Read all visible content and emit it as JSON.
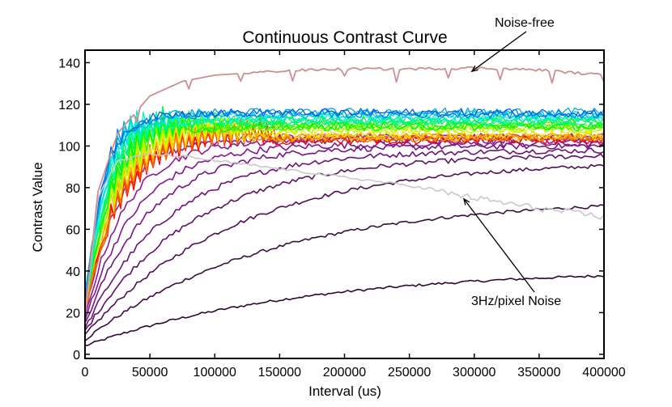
{
  "chart_data": {
    "type": "line",
    "title": "Continuous Contrast Curve",
    "xlabel": "Interval (us)",
    "ylabel": "Contrast Value",
    "xlim": [
      0,
      400000
    ],
    "ylim": [
      -2,
      146
    ],
    "x_ticks": [
      0,
      50000,
      100000,
      150000,
      200000,
      250000,
      300000,
      350000,
      400000
    ],
    "y_ticks": [
      0,
      20,
      40,
      60,
      80,
      100,
      120,
      140
    ],
    "grid": false,
    "legend": "none",
    "annotations": [
      {
        "text": "Noise-free",
        "arrow_to": [
          300000,
          137
        ]
      },
      {
        "text": "3Hz/pixel Noise",
        "arrow_to": [
          292000,
          75
        ]
      }
    ],
    "noise_free_series": {
      "color": "#cc8f8f",
      "x": [
        0,
        10000,
        25000,
        50000,
        75000,
        100000,
        150000,
        200000,
        250000,
        300000,
        350000,
        400000
      ],
      "y": [
        20,
        78,
        106,
        124,
        131,
        134,
        136,
        137,
        137,
        137.5,
        136.5,
        134
      ]
    },
    "noise_3hz_series": {
      "color": "#c8c8c8",
      "x": [
        0,
        10000,
        25000,
        50000,
        75000,
        100000,
        150000,
        200000,
        250000,
        300000,
        350000,
        400000
      ],
      "y": [
        18,
        75,
        93,
        96,
        95,
        93,
        89,
        85,
        81,
        75,
        70,
        66
      ]
    },
    "purple_series": {
      "colors": [
        "#2a0a2a",
        "#3a0d40",
        "#4d0f55",
        "#5e1068",
        "#6c1278",
        "#781486",
        "#841690",
        "#8e1a96",
        "#96209a"
      ],
      "finals": [
        41,
        75,
        93,
        96,
        98,
        100,
        101,
        103,
        104
      ],
      "starts": [
        4,
        7,
        9,
        11,
        12,
        14,
        16,
        17,
        19
      ],
      "rates": [
        165000,
        140000,
        115000,
        85000,
        65000,
        50000,
        40000,
        32000,
        26000
      ]
    },
    "colored_series": {
      "count": 24,
      "hue_range": [
        0,
        215
      ],
      "final_min": 102,
      "final_max": 117,
      "start_min": 20,
      "start_max": 28,
      "rate_min": 14000,
      "rate_max": 30000,
      "spike_end_min": 22000,
      "spike_end_max": 150000
    }
  }
}
